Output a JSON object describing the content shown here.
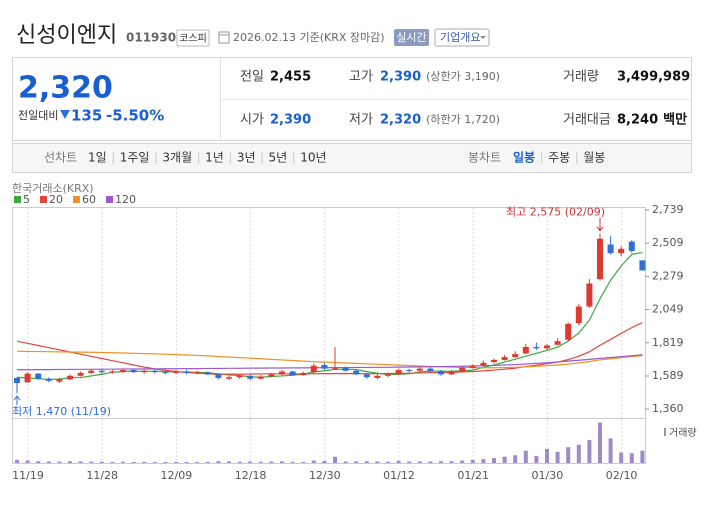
{
  "header": {
    "name": "신성이엔지",
    "code": "011930",
    "market": "코스피",
    "date": "2026.02.13 기준(KRX 장마감)",
    "realtime": "실시간",
    "company_info": "기업개요"
  },
  "summary": {
    "price": "2,320",
    "change_label": "전일대비",
    "change": "135",
    "change_pct": "-5.50%",
    "rows": [
      [
        {
          "label": "전일",
          "value": "2,455"
        },
        {
          "label": "고가",
          "value": "2,390",
          "note": "(상한가 3,190)"
        },
        {
          "label": "거래량",
          "value": "3,499,989"
        }
      ],
      [
        {
          "label": "시가",
          "value": "2,390"
        },
        {
          "label": "저가",
          "value": "2,320",
          "note": "(하한가 1,720)"
        },
        {
          "label": "거래대금",
          "value": "8,240",
          "note": "백만"
        }
      ]
    ]
  },
  "tabs": {
    "line_chart": "선차트",
    "line_periods": [
      "1일",
      "1주일",
      "3개월",
      "1년",
      "3년",
      "5년",
      "10년"
    ],
    "candle_chart": "봉차트",
    "candle_periods": [
      "일봉",
      "주봉",
      "월봉"
    ],
    "active": "일봉"
  },
  "chart_data": {
    "type": "candlestick",
    "source": "한국거래소(KRX)",
    "grid": true,
    "categories": [
      "11/19",
      null,
      null,
      null,
      null,
      null,
      null,
      "11/28",
      null,
      null,
      null,
      null,
      null,
      null,
      "12/09",
      null,
      null,
      null,
      null,
      null,
      null,
      "12/18",
      null,
      null,
      null,
      null,
      null,
      null,
      "12/30",
      null,
      null,
      null,
      null,
      null,
      null,
      "01/12",
      null,
      null,
      null,
      null,
      null,
      null,
      "01/21",
      null,
      null,
      null,
      null,
      null,
      null,
      "01/30",
      null,
      null,
      null,
      null,
      null,
      null,
      "02/10",
      null,
      null,
      null
    ],
    "open": [
      1575,
      1545,
      1605,
      1570,
      1550,
      1565,
      1590,
      1610,
      1625,
      1615,
      1620,
      1630,
      1615,
      1625,
      1615,
      1610,
      1620,
      1610,
      1615,
      1600,
      1570,
      1580,
      1590,
      1570,
      1585,
      1600,
      1620,
      1595,
      1615,
      1665,
      1640,
      1645,
      1625,
      1600,
      1575,
      1590,
      1600,
      1630,
      1625,
      1640,
      1620,
      1600,
      1620,
      1645,
      1660,
      1685,
      1700,
      1720,
      1745,
      1790,
      1780,
      1805,
      1840,
      1955,
      2070,
      2260,
      2500,
      2440,
      2520,
      2390
    ],
    "high": [
      1580,
      1615,
      1610,
      1580,
      1575,
      1600,
      1620,
      1635,
      1635,
      1630,
      1640,
      1640,
      1635,
      1635,
      1625,
      1630,
      1630,
      1625,
      1620,
      1605,
      1590,
      1595,
      1600,
      1595,
      1610,
      1630,
      1625,
      1620,
      1675,
      1680,
      1790,
      1655,
      1630,
      1610,
      1600,
      1610,
      1640,
      1640,
      1650,
      1650,
      1630,
      1630,
      1655,
      1670,
      1695,
      1710,
      1735,
      1760,
      1810,
      1820,
      1810,
      1850,
      1960,
      2090,
      2260,
      2575,
      2560,
      2490,
      2530,
      2390
    ],
    "low": [
      1470,
      1540,
      1560,
      1545,
      1540,
      1560,
      1585,
      1600,
      1605,
      1605,
      1610,
      1610,
      1605,
      1605,
      1600,
      1600,
      1600,
      1600,
      1595,
      1565,
      1560,
      1570,
      1560,
      1565,
      1580,
      1595,
      1590,
      1590,
      1605,
      1630,
      1630,
      1620,
      1595,
      1570,
      1565,
      1580,
      1595,
      1615,
      1620,
      1615,
      1590,
      1595,
      1615,
      1640,
      1655,
      1675,
      1695,
      1715,
      1740,
      1770,
      1770,
      1800,
      1830,
      1940,
      2060,
      2250,
      2430,
      2420,
      2440,
      2320
    ],
    "close": [
      1540,
      1605,
      1570,
      1555,
      1565,
      1590,
      1610,
      1625,
      1615,
      1620,
      1630,
      1615,
      1625,
      1615,
      1610,
      1620,
      1610,
      1615,
      1600,
      1575,
      1580,
      1590,
      1570,
      1585,
      1600,
      1620,
      1595,
      1610,
      1660,
      1640,
      1645,
      1625,
      1600,
      1580,
      1590,
      1600,
      1630,
      1625,
      1640,
      1620,
      1600,
      1620,
      1645,
      1660,
      1680,
      1700,
      1720,
      1740,
      1790,
      1780,
      1800,
      1830,
      1950,
      2070,
      2230,
      2540,
      2440,
      2470,
      2455,
      2320
    ],
    "up_color": "#e0392f",
    "down_color": "#2f6fd6",
    "ylim": [
      1360,
      2739
    ],
    "yticks": [
      {
        "value": 1360,
        "label": "1,360"
      },
      {
        "value": 1589,
        "label": "1,589"
      },
      {
        "value": 1819,
        "label": "1,819"
      },
      {
        "value": 2049,
        "label": "2,049"
      },
      {
        "value": 2279,
        "label": "2,279"
      },
      {
        "value": 2509,
        "label": "2,509"
      },
      {
        "value": 2739,
        "label": "2,739"
      }
    ],
    "annotations": {
      "high": "최고 2,575 (02/09)",
      "low": "최저 1,470 (11/19)"
    },
    "series": [
      {
        "name": "5",
        "color": "#3da63d",
        "values": [
          1580,
          1575,
          1570,
          1565,
          1567,
          1577,
          1578,
          1589,
          1601,
          1614,
          1620,
          1621,
          1621,
          1621,
          1619,
          1617,
          1616,
          1614,
          1611,
          1604,
          1596,
          1592,
          1583,
          1580,
          1585,
          1589,
          1594,
          1602,
          1617,
          1625,
          1634,
          1636,
          1634,
          1618,
          1608,
          1599,
          1600,
          1605,
          1617,
          1623,
          1623,
          1621,
          1625,
          1629,
          1649,
          1665,
          1685,
          1705,
          1726,
          1746,
          1766,
          1788,
          1830,
          1886,
          1976,
          2124,
          2252,
          2352,
          2431,
          2445
        ]
      },
      {
        "name": "20",
        "color": "#e0473c",
        "values": [
          1830,
          1815,
          1800,
          1785,
          1770,
          1755,
          1740,
          1725,
          1710,
          1695,
          1680,
          1665,
          1650,
          1638,
          1628,
          1620,
          1614,
          1608,
          1604,
          1600,
          1602,
          1601,
          1602,
          1603,
          1604,
          1604,
          1603,
          1603,
          1604,
          1605,
          1605,
          1606,
          1605,
          1604,
          1605,
          1606,
          1607,
          1608,
          1610,
          1612,
          1613,
          1614,
          1617,
          1620,
          1624,
          1630,
          1636,
          1643,
          1654,
          1663,
          1674,
          1685,
          1702,
          1726,
          1756,
          1802,
          1842,
          1884,
          1924,
          1959
        ]
      },
      {
        "name": "60",
        "color": "#f0902a",
        "values": [
          1760,
          1759,
          1758,
          1757,
          1756,
          1755,
          1754,
          1753,
          1752,
          1750,
          1748,
          1746,
          1744,
          1742,
          1740,
          1737,
          1734,
          1731,
          1728,
          1724,
          1720,
          1716,
          1712,
          1708,
          1704,
          1700,
          1696,
          1692,
          1688,
          1685,
          1682,
          1679,
          1676,
          1673,
          1670,
          1667,
          1664,
          1661,
          1658,
          1655,
          1652,
          1650,
          1648,
          1647,
          1646,
          1646,
          1647,
          1649,
          1652,
          1656,
          1660,
          1665,
          1671,
          1679,
          1689,
          1700,
          1708,
          1716,
          1724,
          1730
        ]
      },
      {
        "name": "120",
        "color": "#9b5cc9",
        "values": [
          1632,
          1632,
          1633,
          1633,
          1634,
          1634,
          1635,
          1635,
          1636,
          1636,
          1637,
          1637,
          1638,
          1638,
          1639,
          1639,
          1640,
          1640,
          1641,
          1641,
          1642,
          1642,
          1643,
          1643,
          1644,
          1644,
          1645,
          1645,
          1646,
          1646,
          1647,
          1647,
          1648,
          1648,
          1649,
          1649,
          1650,
          1651,
          1652,
          1653,
          1654,
          1655,
          1656,
          1658,
          1660,
          1662,
          1665,
          1668,
          1672,
          1676,
          1681,
          1686,
          1692,
          1698,
          1704,
          1711,
          1717,
          1723,
          1729,
          1736
        ]
      }
    ],
    "volume": {
      "name": "거래량",
      "color": "#9d8ac6",
      "ylim": [
        0,
        12500000
      ],
      "values": [
        900000,
        700000,
        500000,
        450000,
        400000,
        500000,
        450000,
        400000,
        350000,
        300000,
        350000,
        300000,
        300000,
        280000,
        300000,
        320000,
        300000,
        280000,
        300000,
        500000,
        450000,
        350000,
        400000,
        350000,
        400000,
        450000,
        350000,
        300000,
        700000,
        600000,
        1800000,
        400000,
        450000,
        500000,
        400000,
        350000,
        600000,
        400000,
        450000,
        400000,
        500000,
        500000,
        700000,
        900000,
        1100000,
        1400000,
        1800000,
        2200000,
        3500000,
        2000000,
        4000000,
        3200000,
        4500000,
        5200000,
        6500000,
        11500000,
        7000000,
        3000000,
        2800000,
        3499989
      ]
    }
  }
}
